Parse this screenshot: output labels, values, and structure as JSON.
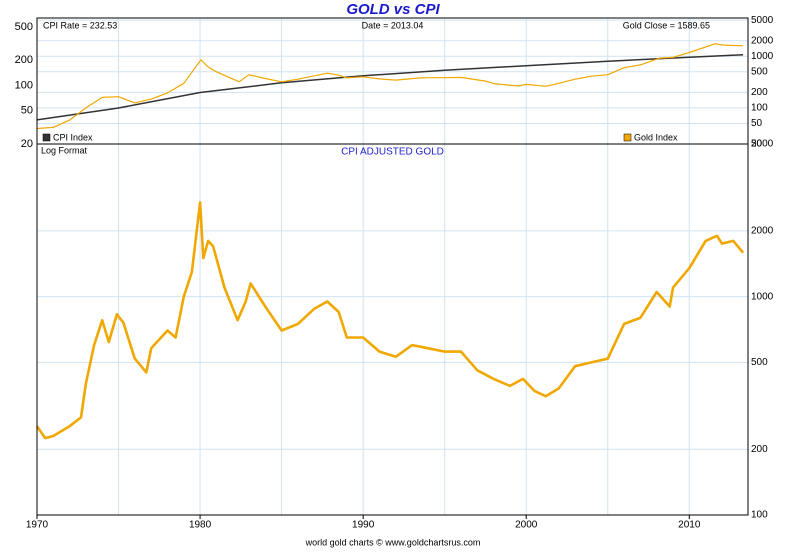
{
  "title": "GOLD vs CPI",
  "footer": "world gold charts © www.goldchartsrus.com",
  "chart_data": [
    {
      "type": "line",
      "log": true,
      "grid": true,
      "header": [
        "CPI Rate = 232.53",
        "Date = 2013.04",
        "Gold Close = 1589.65"
      ],
      "xlim": [
        1970,
        2013.6
      ],
      "xticks": [
        1970,
        1980,
        1990,
        2000,
        2010
      ],
      "xminor": [
        1975,
        1985,
        1995,
        2005
      ],
      "ylim": [
        20,
        640
      ],
      "yticks": [
        20,
        50,
        100,
        200,
        500
      ],
      "y2lim": [
        20,
        5500
      ],
      "y2ticks": [
        20,
        50,
        100,
        200,
        500,
        1000,
        2000,
        5000
      ],
      "series": [
        {
          "name": "CPI Index",
          "color": "#333333",
          "x": [
            1970,
            1975,
            1980,
            1985,
            1990,
            1995,
            2000,
            2005,
            2010,
            2013.3
          ],
          "values": [
            38.8,
            53.8,
            82.4,
            107.6,
            130.7,
            152.4,
            172.2,
            195.3,
            218,
            232.5
          ]
        },
        {
          "name": "Gold Index",
          "color": "#f0a800",
          "axis": "y2",
          "x": [
            1970,
            1971,
            1972,
            1973,
            1974,
            1975,
            1976,
            1977,
            1978,
            1979,
            1980.05,
            1980.5,
            1981,
            1982.4,
            1983,
            1984,
            1985,
            1986,
            1987.8,
            1988.5,
            1989,
            1990,
            1991,
            1992,
            1993.5,
            1994,
            1995,
            1996,
            1997.5,
            1998,
            1999.5,
            2000,
            2001.2,
            2002,
            2003,
            2004,
            2005,
            2006,
            2007,
            2008.2,
            2009,
            2010,
            2011.6,
            2012,
            2013.3
          ],
          "values": [
            40,
            42,
            58,
            100,
            160,
            165,
            125,
            148,
            195,
            300,
            850,
            620,
            500,
            320,
            440,
            370,
            320,
            360,
            470,
            430,
            380,
            400,
            365,
            345,
            380,
            385,
            385,
            390,
            330,
            295,
            265,
            285,
            262,
            300,
            360,
            410,
            440,
            600,
            680,
            920,
            950,
            1180,
            1750,
            1650,
            1590
          ]
        }
      ]
    },
    {
      "type": "line",
      "log": true,
      "grid": true,
      "title": "CPI ADJUSTED GOLD",
      "note": "Log Format",
      "xlim": [
        1970,
        2013.6
      ],
      "xticks": [
        1970,
        1980,
        1990,
        2000,
        2010
      ],
      "xminor": [
        1975,
        1985,
        1995,
        2005
      ],
      "y2lim": [
        100,
        5000
      ],
      "y2ticks": [
        100,
        200,
        500,
        1000,
        2000,
        5000
      ],
      "series": [
        {
          "color": "#f0a800",
          "axis": "y2",
          "x": [
            1970,
            1970.5,
            1971,
            1972,
            1972.7,
            1973,
            1973.5,
            1974,
            1974.4,
            1974.9,
            1975.3,
            1976,
            1976.7,
            1977,
            1978,
            1978.5,
            1979,
            1979.5,
            1980,
            1980.2,
            1980.5,
            1980.8,
            1981.5,
            1982.3,
            1982.8,
            1983.1,
            1984,
            1985,
            1986,
            1987,
            1987.8,
            1988.5,
            1989,
            1990,
            1991,
            1992,
            1993,
            1994,
            1995,
            1996,
            1997,
            1998,
            1999,
            1999.8,
            2000.5,
            2001.2,
            2002,
            2003,
            2004,
            2005,
            2006,
            2007,
            2008,
            2008.8,
            2009,
            2010,
            2011,
            2011.7,
            2012,
            2012.7,
            2013.3
          ],
          "values": [
            255,
            225,
            230,
            255,
            280,
            400,
            600,
            780,
            620,
            830,
            760,
            520,
            450,
            580,
            700,
            650,
            1000,
            1300,
            2700,
            1500,
            1800,
            1700,
            1100,
            780,
            950,
            1150,
            900,
            700,
            750,
            880,
            950,
            850,
            650,
            650,
            560,
            530,
            600,
            580,
            560,
            560,
            460,
            420,
            390,
            420,
            370,
            350,
            380,
            480,
            500,
            520,
            750,
            800,
            1050,
            900,
            1100,
            1350,
            1800,
            1900,
            1750,
            1800,
            1590
          ]
        }
      ]
    }
  ]
}
